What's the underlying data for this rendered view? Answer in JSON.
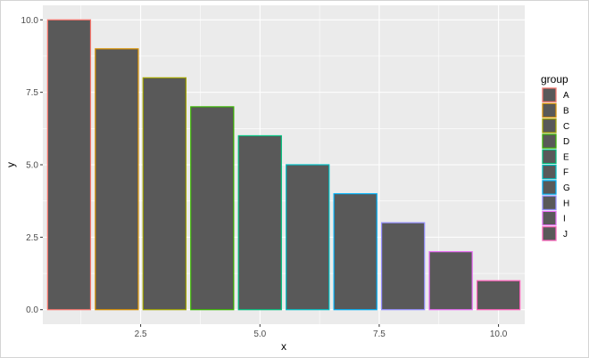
{
  "chart_data": {
    "type": "bar",
    "x": [
      1,
      2,
      3,
      4,
      5,
      6,
      7,
      8,
      9,
      10
    ],
    "values": [
      10,
      9,
      8,
      7,
      6,
      5,
      4,
      3,
      2,
      1
    ],
    "groups": [
      "A",
      "B",
      "C",
      "D",
      "E",
      "F",
      "G",
      "H",
      "I",
      "J"
    ],
    "outline_colors": [
      "#F8766D",
      "#D89000",
      "#A3A500",
      "#39B600",
      "#00BF7D",
      "#00BFC4",
      "#00B0F6",
      "#9590FF",
      "#E76BF3",
      "#FF62BC"
    ],
    "fill_color": "#595959",
    "xlabel": "x",
    "ylabel": "y",
    "xlim": [
      0.45,
      10.55
    ],
    "ylim": [
      -0.5,
      10.5
    ],
    "x_ticks": [
      2.5,
      5.0,
      7.5,
      10.0
    ],
    "x_tick_labels": [
      "2.5",
      "5.0",
      "7.5",
      "10.0"
    ],
    "y_ticks": [
      0,
      2.5,
      5,
      7.5,
      10
    ],
    "y_tick_labels": [
      "0.0",
      "2.5",
      "5.0",
      "7.5",
      "10.0"
    ],
    "grid": true,
    "panel_background": "#EBEBEB",
    "legend": {
      "title": "group",
      "position": "right"
    }
  }
}
